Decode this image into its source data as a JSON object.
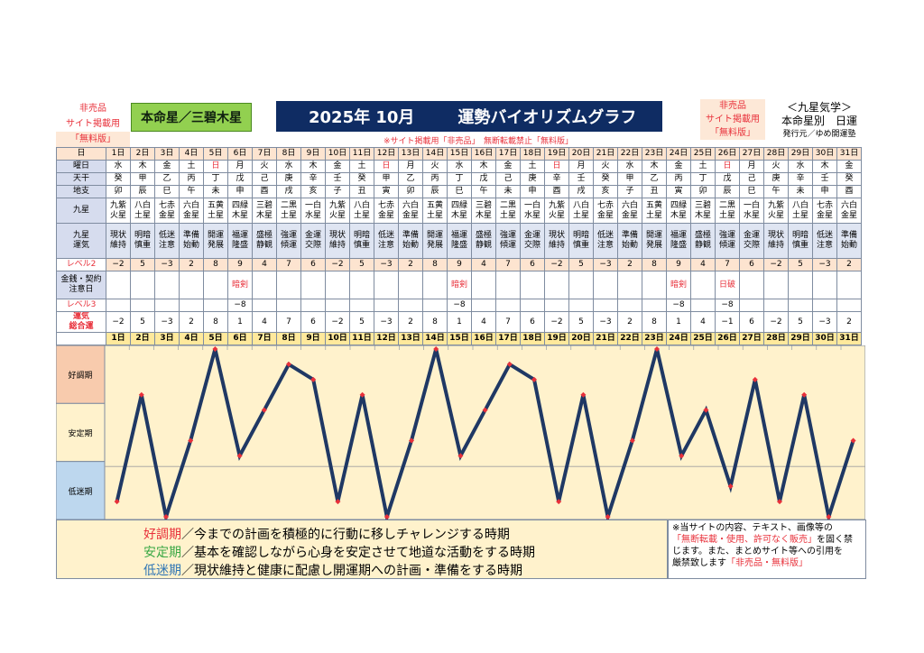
{
  "header": {
    "nonsale_left": [
      "非売品",
      "サイト掲載用",
      "「無料版」"
    ],
    "honmei_label": "本命星／三碧木星",
    "title_year": "2025年 10月",
    "title_main": "運勢バイオリズムグラフ",
    "nonsale_right": [
      "非売品",
      "サイト掲載用",
      "「無料版」"
    ],
    "kyusei_title": "＜九星気学＞",
    "kyusei_sub": "本命星別　日運",
    "publisher": "発行元／ゆめ開運塾",
    "notice": "※サイト掲載用「非売品」　無断転載禁止「無料版」"
  },
  "labels": {
    "day": "日",
    "weekday": "曜日",
    "stem": "天干",
    "branch": "地支",
    "star": "九星",
    "fortune": "九星\n運気",
    "level2": "レベル2",
    "money": "金銭・契約\n注意日",
    "level3": "レベル3",
    "total": "運気\n総合運"
  },
  "days": [
    "1日",
    "2日",
    "3日",
    "4日",
    "5日",
    "6日",
    "7日",
    "8日",
    "9日",
    "10日",
    "11日",
    "12日",
    "13日",
    "14日",
    "15日",
    "16日",
    "17日",
    "18日",
    "19日",
    "20日",
    "21日",
    "22日",
    "23日",
    "24日",
    "25日",
    "26日",
    "27日",
    "28日",
    "29日",
    "30日",
    "31日"
  ],
  "weekdays": [
    "水",
    "木",
    "金",
    "土",
    "日",
    "月",
    "火",
    "水",
    "木",
    "金",
    "土",
    "日",
    "月",
    "火",
    "水",
    "木",
    "金",
    "土",
    "日",
    "月",
    "火",
    "水",
    "木",
    "金",
    "土",
    "日",
    "月",
    "火",
    "水",
    "木",
    "金"
  ],
  "stems": [
    "癸",
    "甲",
    "乙",
    "丙",
    "丁",
    "戊",
    "己",
    "庚",
    "辛",
    "壬",
    "癸",
    "甲",
    "乙",
    "丙",
    "丁",
    "戊",
    "己",
    "庚",
    "辛",
    "壬",
    "癸",
    "甲",
    "乙",
    "丙",
    "丁",
    "戊",
    "己",
    "庚",
    "辛",
    "壬",
    "癸"
  ],
  "branches": [
    "卯",
    "辰",
    "巳",
    "午",
    "未",
    "申",
    "酉",
    "戌",
    "亥",
    "子",
    "丑",
    "寅",
    "卯",
    "辰",
    "巳",
    "午",
    "未",
    "申",
    "酉",
    "戌",
    "亥",
    "子",
    "丑",
    "寅",
    "卯",
    "辰",
    "巳",
    "午",
    "未",
    "申",
    "酉"
  ],
  "stars": [
    "九紫\n火星",
    "八白\n土星",
    "七赤\n金星",
    "六白\n金星",
    "五黄\n土星",
    "四緑\n木星",
    "三碧\n木星",
    "二黒\n土星",
    "一白\n水星",
    "九紫\n火星",
    "八白\n土星",
    "七赤\n金星",
    "六白\n金星",
    "五黄\n土星",
    "四緑\n木星",
    "三碧\n木星",
    "二黒\n土星",
    "一白\n水星",
    "九紫\n火星",
    "八白\n土星",
    "七赤\n金星",
    "六白\n金星",
    "五黄\n土星",
    "四緑\n木星",
    "三碧\n木星",
    "二黒\n土星",
    "一白\n水星",
    "九紫\n火星",
    "八白\n土星",
    "七赤\n金星",
    "六白\n金星"
  ],
  "fortunes": [
    "現状\n維持",
    "明暗\n慎重",
    "低迷\n注意",
    "準備\n始動",
    "開運\n発展",
    "福運\n隆盛",
    "盛極\n静観",
    "強運\n傾運",
    "金運\n交際",
    "現状\n維持",
    "明暗\n慎重",
    "低迷\n注意",
    "準備\n始動",
    "開運\n発展",
    "福運\n隆盛",
    "盛極\n静観",
    "強運\n傾運",
    "金運\n交際",
    "現状\n維持",
    "明暗\n慎重",
    "低迷\n注意",
    "準備\n始動",
    "開運\n発展",
    "福運\n隆盛",
    "盛極\n静観",
    "強運\n傾運",
    "金運\n交際",
    "現状\n維持",
    "明暗\n慎重",
    "低迷\n注意",
    "準備\n始動"
  ],
  "level2": [
    "−2",
    "5",
    "−3",
    "2",
    "8",
    "9",
    "4",
    "7",
    "6",
    "−2",
    "5",
    "−3",
    "2",
    "8",
    "9",
    "4",
    "7",
    "6",
    "−2",
    "5",
    "−3",
    "2",
    "8",
    "9",
    "4",
    "7",
    "6",
    "−2",
    "5",
    "−3",
    "2"
  ],
  "money": [
    "",
    "",
    "",
    "",
    "",
    "暗剣",
    "",
    "",
    "",
    "",
    "",
    "",
    "",
    "",
    "暗剣",
    "",
    "",
    "",
    "",
    "",
    "",
    "",
    "",
    "暗剣",
    "",
    "日破",
    "",
    "",
    "",
    "",
    ""
  ],
  "level3": [
    "",
    "",
    "",
    "",
    "",
    "−8",
    "",
    "",
    "",
    "",
    "",
    "",
    "",
    "",
    "−8",
    "",
    "",
    "",
    "",
    "",
    "",
    "",
    "",
    "−8",
    "",
    "−8",
    "",
    "",
    "",
    "",
    ""
  ],
  "total": [
    "−2",
    "5",
    "−3",
    "2",
    "8",
    "1",
    "4",
    "7",
    "6",
    "−2",
    "5",
    "−3",
    "2",
    "8",
    "1",
    "4",
    "7",
    "6",
    "−2",
    "5",
    "−3",
    "2",
    "8",
    "1",
    "4",
    "−1",
    "6",
    "−2",
    "5",
    "−3",
    "2"
  ],
  "chart_data": {
    "type": "line",
    "categories": [
      "1日",
      "2日",
      "3日",
      "4日",
      "5日",
      "6日",
      "7日",
      "8日",
      "9日",
      "10日",
      "11日",
      "12日",
      "13日",
      "14日",
      "15日",
      "16日",
      "17日",
      "18日",
      "19日",
      "20日",
      "21日",
      "22日",
      "23日",
      "24日",
      "25日",
      "26日",
      "27日",
      "28日",
      "29日",
      "30日",
      "31日"
    ],
    "values": [
      -2,
      5,
      -3,
      2,
      8,
      1,
      4,
      7,
      6,
      -2,
      5,
      -3,
      2,
      8,
      1,
      4,
      7,
      6,
      -2,
      5,
      -3,
      2,
      8,
      1,
      4,
      -1,
      6,
      -2,
      5,
      -3,
      2
    ],
    "ylim": [
      -3,
      8
    ],
    "bands": [
      "好調期",
      "安定期",
      "低迷期"
    ],
    "band_colors": [
      "#f8cbad",
      "#fff2cc",
      "#bdd7ee"
    ],
    "line_color": "#1f3864",
    "marker_color": "#e8303a",
    "background": "#fff2cc",
    "grid": false
  },
  "descriptions": [
    {
      "term": "好調期",
      "color": "#e8303a",
      "text": "／今までの計画を積極的に行動に移しチャレンジする時期"
    },
    {
      "term": "安定期",
      "color": "#39a845",
      "text": "／基本を確認しながら心身を安定させて地道な活動をする時期"
    },
    {
      "term": "低迷期",
      "color": "#2f75b5",
      "text": "／現状維持と健康に配慮し開運期への計画・準備をする時期"
    }
  ],
  "copyright": {
    "line1": "※当サイトの内容、テキスト、画像等の",
    "line2_hl": "「無断転載・使用、許可なく販売」",
    "line2_rest": "を固く禁",
    "line3": "じます。また、まとめサイト等への引用を",
    "line4": "厳禁致します",
    "line4_hl": "「非売品・無料版」"
  }
}
